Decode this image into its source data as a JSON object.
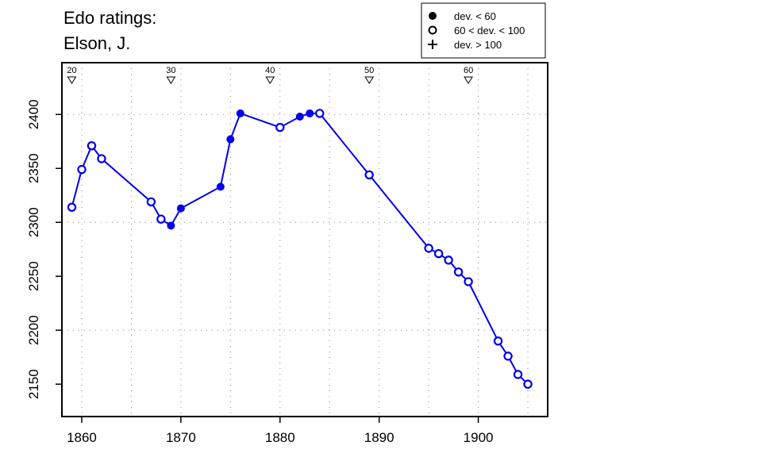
{
  "title": [
    "Edo ratings:",
    "Elson, J."
  ],
  "legend": [
    {
      "label": "dev. < 60",
      "marker": "filled-circle"
    },
    {
      "label": "60 < dev. < 100",
      "marker": "open-circle"
    },
    {
      "label": "dev. > 100",
      "marker": "plus"
    }
  ],
  "colors": {
    "series": "#0000ee",
    "axis": "#000000",
    "grid": "#888888"
  },
  "chart_data": {
    "type": "line",
    "title": "Edo ratings: Elson, J.",
    "xlabel": "",
    "ylabel": "",
    "xlim": [
      1858,
      1907
    ],
    "ylim": [
      2120,
      2448
    ],
    "xticks": [
      1860,
      1870,
      1880,
      1890,
      1900
    ],
    "yticks": [
      2150,
      2200,
      2250,
      2300,
      2350,
      2400
    ],
    "grid": true,
    "legend_position": "top-right",
    "age_markers": [
      {
        "label": "20",
        "year": 1859
      },
      {
        "label": "30",
        "year": 1869
      },
      {
        "label": "40",
        "year": 1879
      },
      {
        "label": "50",
        "year": 1889
      },
      {
        "label": "60",
        "year": 1899
      }
    ],
    "series": [
      {
        "points": [
          {
            "x": 1859,
            "y": 2314,
            "marker": "open"
          },
          {
            "x": 1860,
            "y": 2349,
            "marker": "open"
          },
          {
            "x": 1861,
            "y": 2371,
            "marker": "open"
          },
          {
            "x": 1862,
            "y": 2359,
            "marker": "open"
          },
          {
            "x": 1867,
            "y": 2319,
            "marker": "open"
          },
          {
            "x": 1868,
            "y": 2303,
            "marker": "open"
          },
          {
            "x": 1869,
            "y": 2297,
            "marker": "filled"
          },
          {
            "x": 1870,
            "y": 2313,
            "marker": "filled"
          },
          {
            "x": 1874,
            "y": 2333,
            "marker": "filled"
          },
          {
            "x": 1875,
            "y": 2377,
            "marker": "filled"
          },
          {
            "x": 1876,
            "y": 2401,
            "marker": "filled"
          },
          {
            "x": 1880,
            "y": 2388,
            "marker": "open"
          },
          {
            "x": 1882,
            "y": 2398,
            "marker": "filled"
          },
          {
            "x": 1883,
            "y": 2401,
            "marker": "filled"
          },
          {
            "x": 1884,
            "y": 2401,
            "marker": "open"
          },
          {
            "x": 1889,
            "y": 2344,
            "marker": "open"
          },
          {
            "x": 1895,
            "y": 2276,
            "marker": "open"
          },
          {
            "x": 1896,
            "y": 2271,
            "marker": "open"
          },
          {
            "x": 1897,
            "y": 2265,
            "marker": "open"
          },
          {
            "x": 1898,
            "y": 2254,
            "marker": "open"
          },
          {
            "x": 1899,
            "y": 2245,
            "marker": "open"
          },
          {
            "x": 1902,
            "y": 2190,
            "marker": "open"
          },
          {
            "x": 1903,
            "y": 2176,
            "marker": "open"
          },
          {
            "x": 1904,
            "y": 2159,
            "marker": "open"
          },
          {
            "x": 1905,
            "y": 2150,
            "marker": "open"
          }
        ]
      }
    ]
  }
}
